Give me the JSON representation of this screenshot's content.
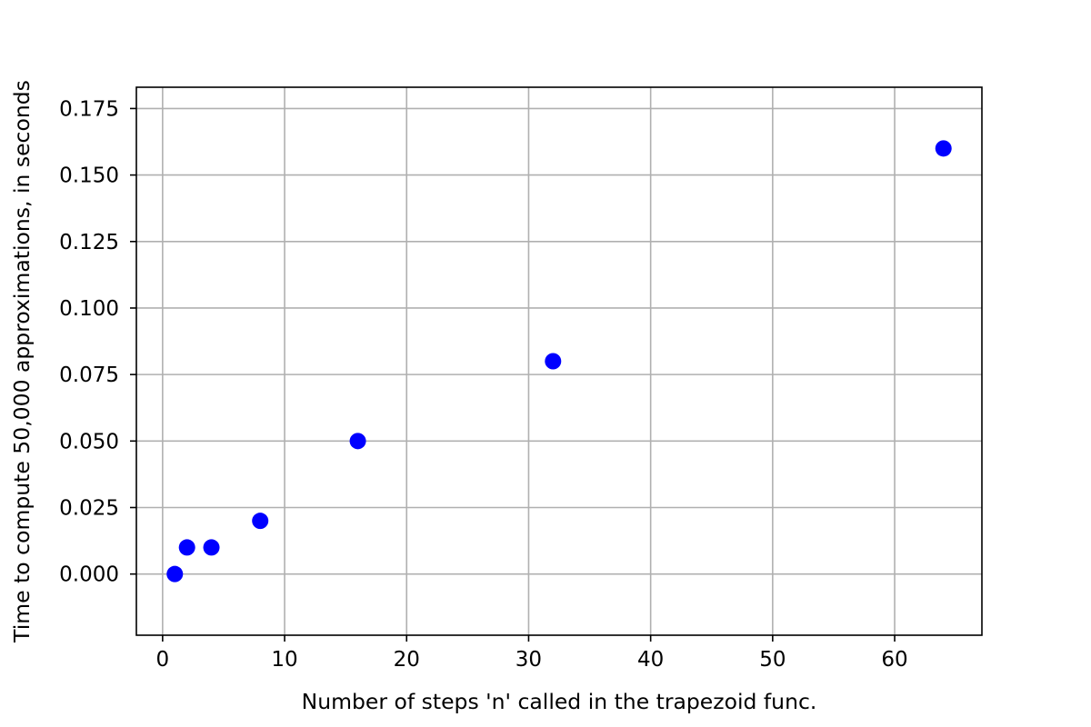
{
  "chart_data": {
    "type": "scatter",
    "title": "",
    "xlabel": "Number of steps 'n' called in the trapezoid func.",
    "ylabel": "Time to compute 50,000 approximations, in seconds",
    "xlim": [
      -2.15,
      67.15
    ],
    "ylim": [
      -0.023,
      0.183
    ],
    "x_ticks": [
      0,
      10,
      20,
      30,
      40,
      50,
      60
    ],
    "x_tick_labels": [
      "0",
      "10",
      "20",
      "30",
      "40",
      "50",
      "60"
    ],
    "y_ticks": [
      0.0,
      0.025,
      0.05,
      0.075,
      0.1,
      0.125,
      0.15,
      0.175
    ],
    "y_tick_labels": [
      "0.000",
      "0.025",
      "0.050",
      "0.075",
      "0.100",
      "0.125",
      "0.150",
      "0.175"
    ],
    "grid": true,
    "legend": "none",
    "marker_color": "#0000ff",
    "points": [
      {
        "x": 1,
        "y": 0.0
      },
      {
        "x": 2,
        "y": 0.01
      },
      {
        "x": 4,
        "y": 0.01
      },
      {
        "x": 8,
        "y": 0.02
      },
      {
        "x": 16,
        "y": 0.05
      },
      {
        "x": 32,
        "y": 0.08
      },
      {
        "x": 64,
        "y": 0.16
      }
    ]
  }
}
